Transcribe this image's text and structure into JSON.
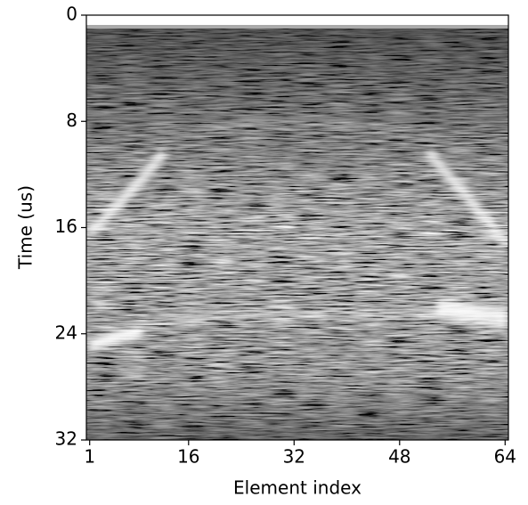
{
  "chart_data": {
    "type": "image",
    "xlabel": "Element index",
    "ylabel": "Time (us)",
    "xlim": [
      0.5,
      64.5
    ],
    "xticks": [
      1,
      16,
      32,
      48,
      64
    ],
    "ylim": [
      32,
      0
    ],
    "yticks": [
      0,
      8,
      16,
      24,
      32
    ],
    "colormap": "gray"
  }
}
